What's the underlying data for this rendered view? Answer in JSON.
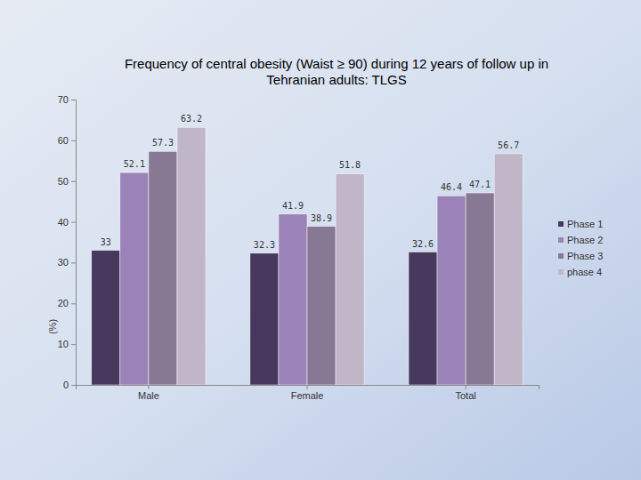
{
  "chart_data": {
    "type": "bar",
    "title": "Frequency of central obesity (Waist ≥ 90) during 12 years of follow up in Tehranian  adults: TLGS",
    "y_label": "(%)",
    "categories": [
      "Male",
      "Female",
      "Total"
    ],
    "series": [
      {
        "name": "Phase 1",
        "color": "#47385d",
        "values": [
          33,
          32.3,
          32.6
        ]
      },
      {
        "name": "Phase 2",
        "color": "#9b82b8",
        "values": [
          52.1,
          41.9,
          46.4
        ]
      },
      {
        "name": "Phase 3",
        "color": "#877994",
        "values": [
          57.3,
          38.9,
          47.1
        ]
      },
      {
        "name": "phase 4",
        "color": "#c0b6c7",
        "values": [
          63.2,
          51.8,
          56.7
        ]
      }
    ],
    "ylim": [
      0,
      70
    ],
    "yticks": [
      0,
      10,
      20,
      30,
      40,
      50,
      60,
      70
    ],
    "grid": false,
    "legend": "right",
    "data_labels": true
  }
}
